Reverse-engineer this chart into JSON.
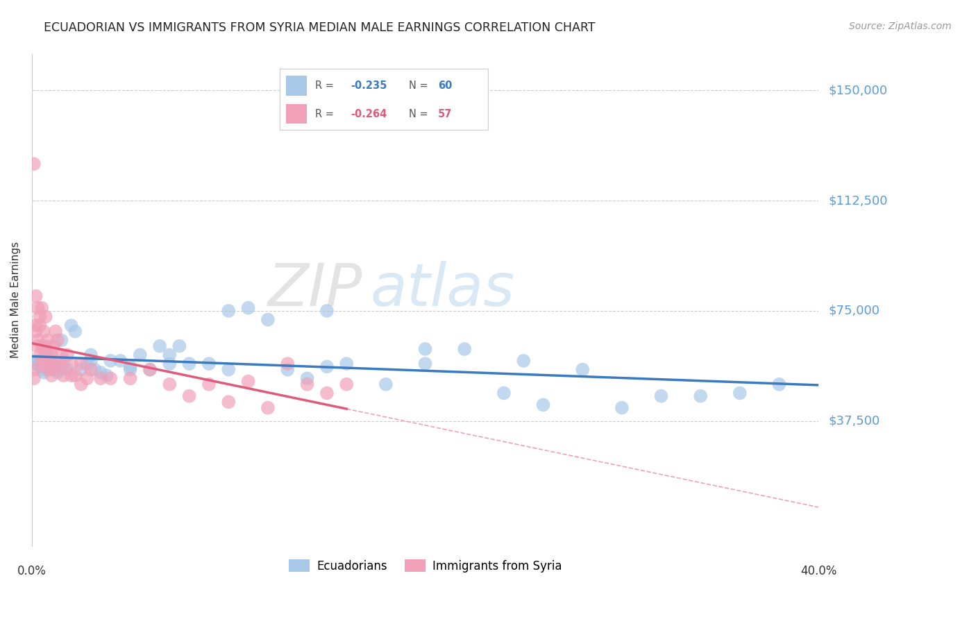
{
  "title": "ECUADORIAN VS IMMIGRANTS FROM SYRIA MEDIAN MALE EARNINGS CORRELATION CHART",
  "source": "Source: ZipAtlas.com",
  "ylabel": "Median Male Earnings",
  "ylim": [
    -5000,
    162500
  ],
  "xlim": [
    0.0,
    0.4
  ],
  "ytick_vals": [
    37500,
    75000,
    112500,
    150000
  ],
  "ytick_labels": [
    "$37,500",
    "$75,000",
    "$112,500",
    "$150,000"
  ],
  "watermark_zip": "ZIP",
  "watermark_atlas": "atlas",
  "blue_color": "#3a7abf",
  "pink_color": "#e05a7a",
  "blue_scatter_color": "#a8c8e8",
  "pink_scatter_color": "#f0a0b8",
  "grid_color": "#cccccc",
  "blue_x": [
    0.001,
    0.002,
    0.003,
    0.004,
    0.005,
    0.006,
    0.007,
    0.008,
    0.009,
    0.01,
    0.011,
    0.012,
    0.013,
    0.014,
    0.015,
    0.016,
    0.018,
    0.02,
    0.022,
    0.025,
    0.028,
    0.03,
    0.032,
    0.035,
    0.038,
    0.04,
    0.045,
    0.05,
    0.055,
    0.06,
    0.065,
    0.07,
    0.075,
    0.08,
    0.09,
    0.1,
    0.11,
    0.12,
    0.13,
    0.14,
    0.15,
    0.16,
    0.18,
    0.2,
    0.22,
    0.24,
    0.26,
    0.28,
    0.3,
    0.32,
    0.34,
    0.36,
    0.38,
    0.1,
    0.2,
    0.15,
    0.25,
    0.05,
    0.07,
    0.03
  ],
  "blue_y": [
    57000,
    57000,
    58000,
    56000,
    55000,
    54000,
    56000,
    55000,
    58000,
    57000,
    55000,
    56000,
    54000,
    55000,
    65000,
    57000,
    55000,
    70000,
    68000,
    55000,
    57000,
    60000,
    55000,
    54000,
    53000,
    58000,
    58000,
    55000,
    60000,
    55000,
    63000,
    60000,
    63000,
    57000,
    57000,
    75000,
    76000,
    72000,
    55000,
    52000,
    75000,
    57000,
    50000,
    62000,
    62000,
    47000,
    43000,
    55000,
    42000,
    46000,
    46000,
    47000,
    50000,
    55000,
    57000,
    56000,
    58000,
    56000,
    57000,
    58000
  ],
  "pink_x": [
    0.001,
    0.001,
    0.002,
    0.002,
    0.003,
    0.003,
    0.004,
    0.004,
    0.005,
    0.005,
    0.006,
    0.006,
    0.007,
    0.007,
    0.008,
    0.008,
    0.009,
    0.009,
    0.01,
    0.01,
    0.011,
    0.012,
    0.013,
    0.014,
    0.015,
    0.016,
    0.018,
    0.02,
    0.022,
    0.025,
    0.028,
    0.03,
    0.035,
    0.04,
    0.05,
    0.06,
    0.07,
    0.08,
    0.09,
    0.1,
    0.11,
    0.12,
    0.13,
    0.14,
    0.15,
    0.16,
    0.001,
    0.003,
    0.002,
    0.004,
    0.005,
    0.006,
    0.007,
    0.012,
    0.015,
    0.02,
    0.025
  ],
  "pink_y": [
    125000,
    52000,
    80000,
    68000,
    76000,
    65000,
    73000,
    70000,
    76000,
    63000,
    68000,
    62000,
    73000,
    60000,
    65000,
    60000,
    57000,
    55000,
    60000,
    53000,
    63000,
    68000,
    65000,
    57000,
    60000,
    53000,
    60000,
    57000,
    53000,
    57000,
    52000,
    55000,
    52000,
    52000,
    52000,
    55000,
    50000,
    46000,
    50000,
    44000,
    51000,
    42000,
    57000,
    50000,
    47000,
    50000,
    55000,
    63000,
    70000,
    60000,
    58000,
    56000,
    63000,
    56000,
    56000,
    53000,
    50000
  ],
  "legend_r_blue": "R = -0.235",
  "legend_n_blue": "N = 60",
  "legend_r_pink": "R = -0.264",
  "legend_n_pink": "N = 57",
  "bottom_legend_blue": "Ecuadorians",
  "bottom_legend_pink": "Immigrants from Syria"
}
